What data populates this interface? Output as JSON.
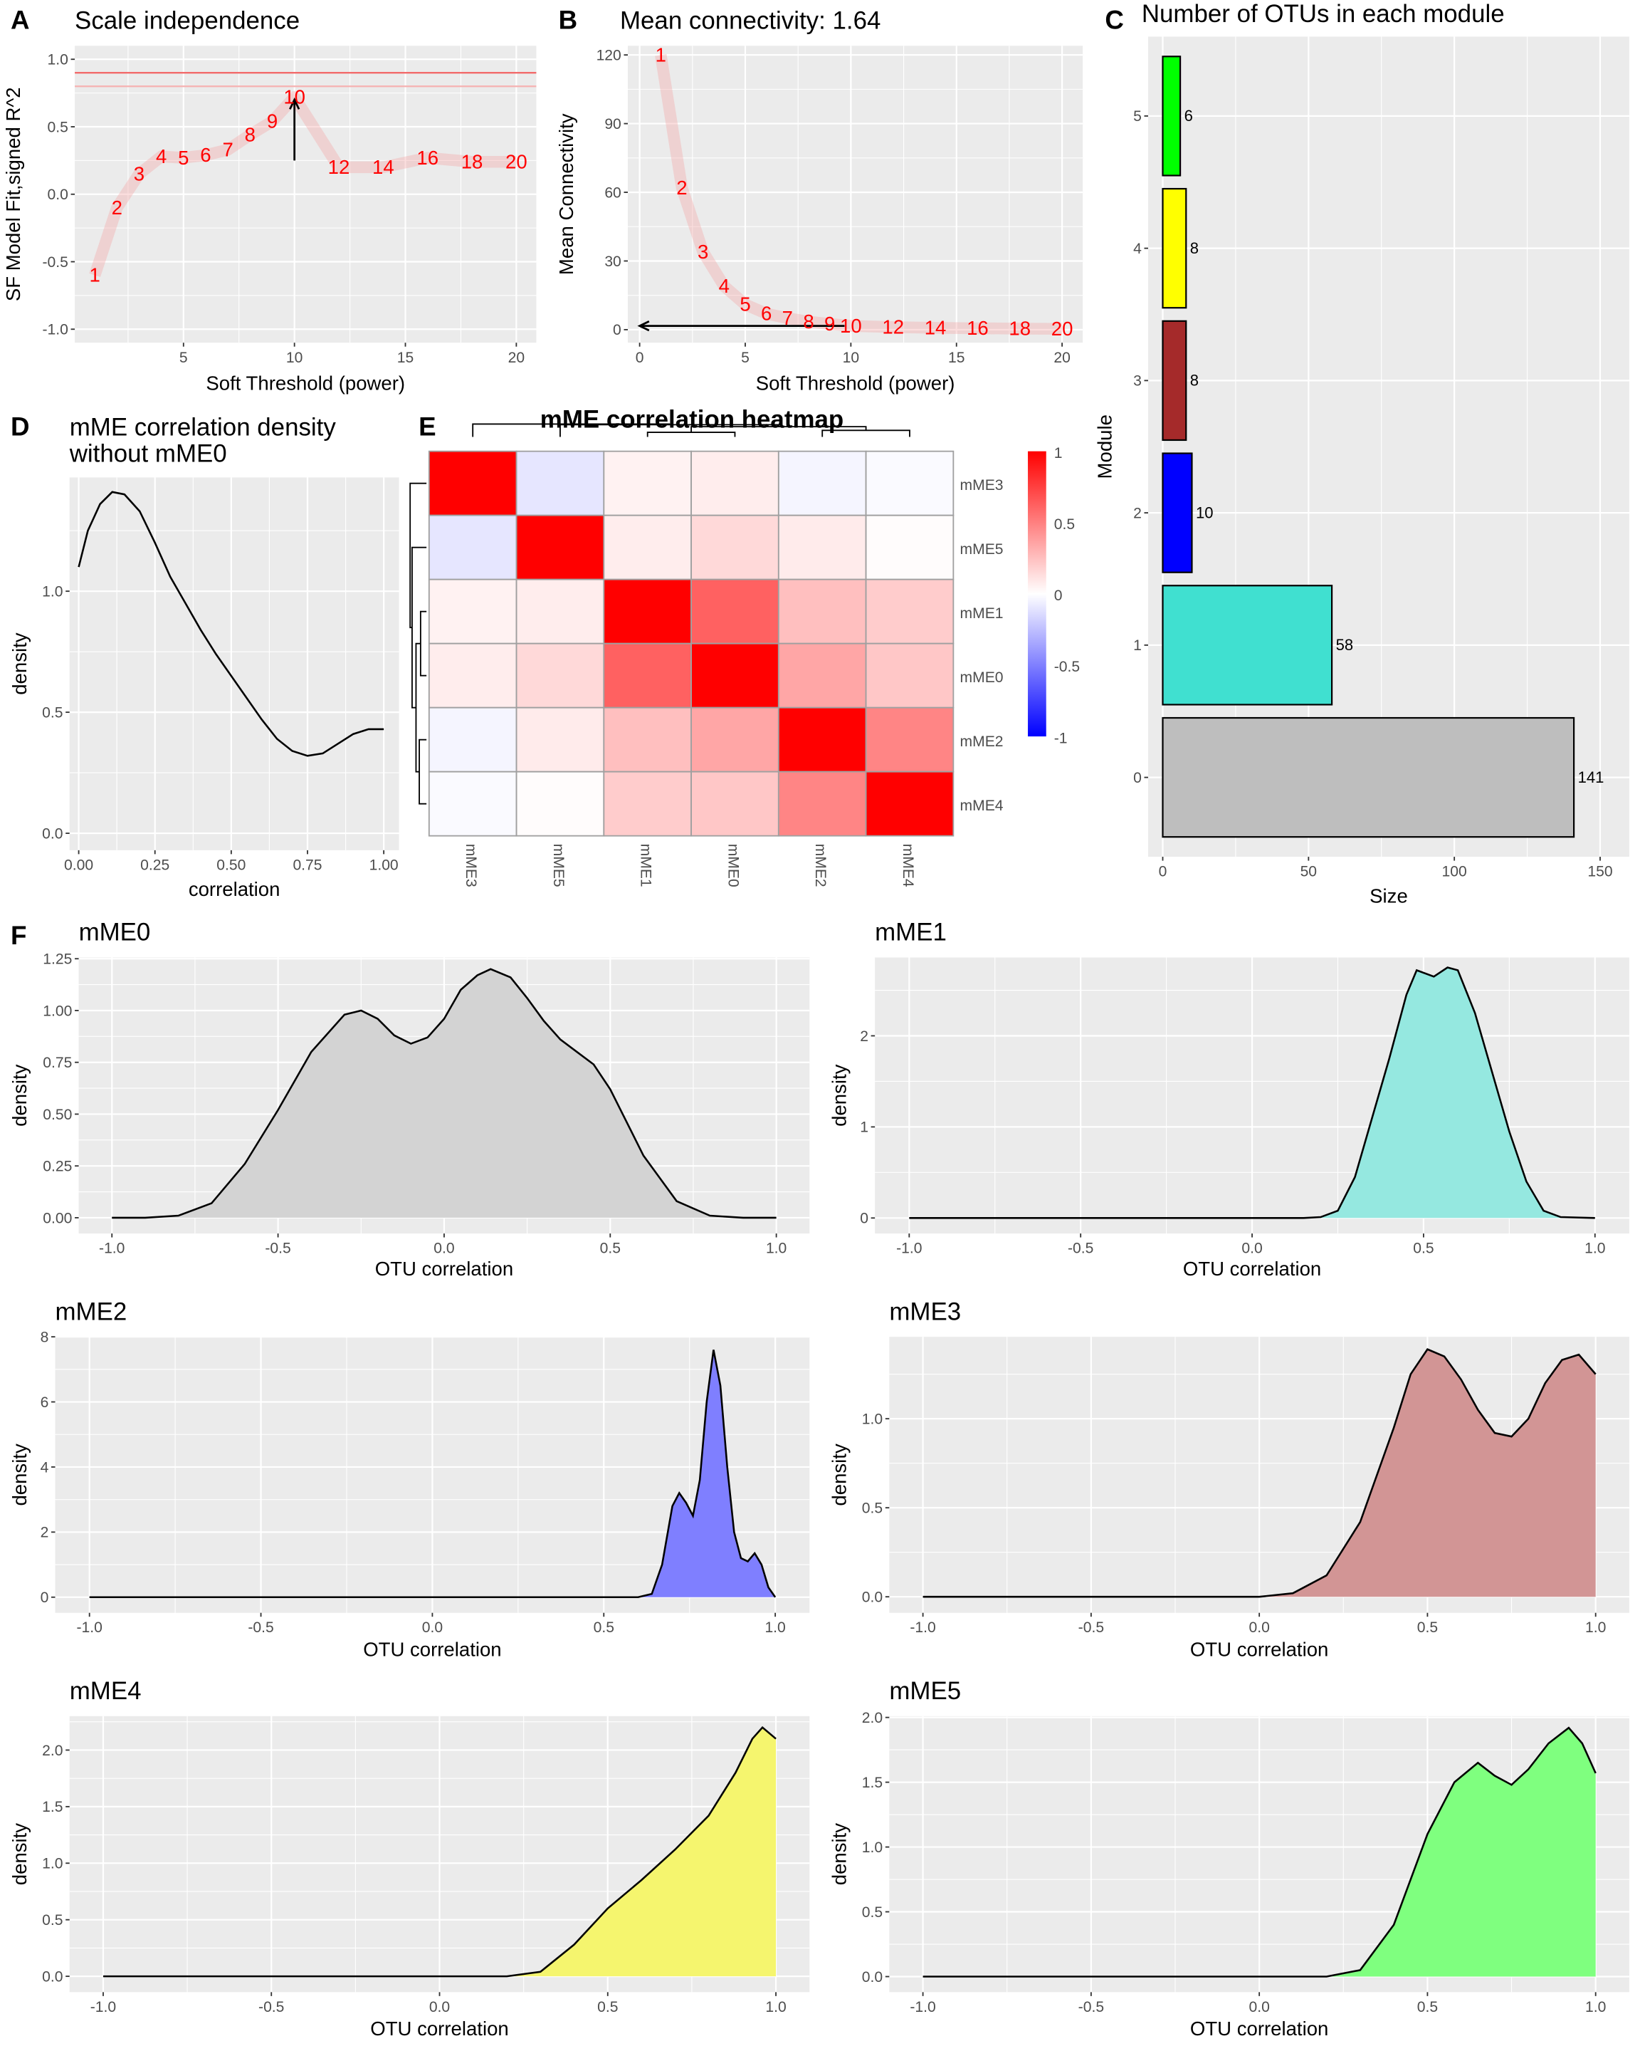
{
  "figure": {
    "colors": {
      "panel_bg": "#EBEBEB",
      "grid": "#FFFFFF",
      "label_red": "#FF0000",
      "heat_high": "#FF0000",
      "heat_mid": "#FFFFFF",
      "heat_low": "#0000FF"
    }
  },
  "chart_data": [
    {
      "panel": "A",
      "type": "line",
      "title": "Scale independence",
      "xlabel": "Soft Threshold (power)",
      "ylabel": "SF Model Fit,signed R^2",
      "xlim": [
        0.1,
        20.9
      ],
      "ylim": [
        -1.1,
        1.1
      ],
      "grid": true,
      "xticks": [
        5,
        10,
        15,
        20
      ],
      "xtick_labels": [
        "5",
        "10",
        "15",
        "20"
      ],
      "yticks": [
        -1,
        -0.5,
        0,
        0.5,
        1
      ],
      "ytick_labels": [
        "-1.0",
        "-0.5",
        "0.0",
        "0.5",
        "1.0"
      ],
      "x": [
        1,
        2,
        3,
        4,
        5,
        6,
        7,
        8,
        9,
        10,
        12,
        14,
        16,
        18,
        20
      ],
      "y": [
        -0.6,
        -0.1,
        0.15,
        0.28,
        0.27,
        0.29,
        0.33,
        0.44,
        0.54,
        0.72,
        0.2,
        0.2,
        0.27,
        0.24,
        0.24
      ],
      "point_labels": [
        "1",
        "2",
        "3",
        "4",
        "5",
        "6",
        "7",
        "8",
        "9",
        "10",
        "12",
        "14",
        "16",
        "18",
        "20"
      ],
      "hlines": [
        {
          "y": 0.9,
          "color": "#F26B6B"
        },
        {
          "y": 0.8,
          "color": "#F5B5B5"
        }
      ],
      "arrow": {
        "from": [
          10,
          0.25
        ],
        "to": [
          10,
          0.7
        ]
      }
    },
    {
      "panel": "B",
      "type": "line",
      "title": "Mean connectivity: 1.64",
      "xlabel": "Soft Threshold (power)",
      "ylabel": "Mean Connectivity",
      "xlim": [
        -0.56,
        20.98
      ],
      "ylim": [
        -5.7,
        124
      ],
      "grid": true,
      "xticks": [
        0,
        5,
        10,
        15,
        20
      ],
      "xtick_labels": [
        "0",
        "5",
        "10",
        "15",
        "20"
      ],
      "yticks": [
        0,
        30,
        60,
        90,
        120
      ],
      "ytick_labels": [
        "0",
        "30",
        "60",
        "90",
        "120"
      ],
      "x": [
        1,
        2,
        3,
        4,
        5,
        6,
        7,
        8,
        9,
        10,
        12,
        14,
        16,
        18,
        20
      ],
      "y": [
        120,
        62,
        34,
        19,
        11,
        7,
        5,
        3.5,
        2.5,
        1.64,
        1.1,
        0.8,
        0.6,
        0.45,
        0.35
      ],
      "point_labels": [
        "1",
        "2",
        "3",
        "4",
        "5",
        "6",
        "7",
        "8",
        "9",
        "10",
        "12",
        "14",
        "16",
        "18",
        "20"
      ],
      "arrow": {
        "from": [
          9.7,
          1.64
        ],
        "to": [
          0,
          1.64
        ]
      }
    },
    {
      "panel": "C",
      "type": "bar",
      "orientation": "horizontal",
      "title": "Number of OTUs in each module",
      "xlabel": "Size",
      "ylabel": "Module",
      "xlim": [
        -5,
        160
      ],
      "ylim": [
        -0.6,
        5.6
      ],
      "grid": true,
      "xticks": [
        0,
        50,
        100,
        150
      ],
      "xtick_labels": [
        "0",
        "50",
        "100",
        "150"
      ],
      "categories": [
        "0",
        "1",
        "2",
        "3",
        "4",
        "5"
      ],
      "values": [
        141,
        58,
        10,
        8,
        8,
        6
      ],
      "value_labels": [
        "141",
        "58",
        "10",
        "8",
        "8",
        "6"
      ],
      "bar_colors": [
        "#BEBEBE",
        "#40E0D0",
        "#0000FF",
        "#A52A2A",
        "#FFFF00",
        "#00FF00"
      ]
    },
    {
      "panel": "D",
      "type": "line",
      "title": "mME correlation density",
      "title_line2": " without mME0",
      "xlabel": "correlation",
      "ylabel": "density",
      "xlim": [
        -0.03,
        1.05
      ],
      "ylim": [
        -0.07,
        1.47
      ],
      "grid": true,
      "xticks": [
        0,
        0.25,
        0.5,
        0.75,
        1
      ],
      "xtick_labels": [
        "0.00",
        "0.25",
        "0.50",
        "0.75",
        "1.00"
      ],
      "yticks": [
        0,
        0.5,
        1
      ],
      "ytick_labels": [
        "0.0",
        "0.5",
        "1.0"
      ],
      "x": [
        0,
        0.03,
        0.07,
        0.11,
        0.15,
        0.2,
        0.25,
        0.3,
        0.35,
        0.4,
        0.45,
        0.5,
        0.55,
        0.6,
        0.65,
        0.7,
        0.75,
        0.8,
        0.85,
        0.9,
        0.95,
        1.0
      ],
      "y": [
        1.1,
        1.25,
        1.36,
        1.41,
        1.4,
        1.33,
        1.2,
        1.06,
        0.95,
        0.84,
        0.74,
        0.65,
        0.56,
        0.47,
        0.39,
        0.34,
        0.32,
        0.33,
        0.37,
        0.41,
        0.43,
        0.43
      ]
    },
    {
      "panel": "E",
      "type": "heatmap",
      "title": "mME correlation heatmap",
      "rows": [
        "mME3",
        "mME5",
        "mME1",
        "mME0",
        "mME2",
        "mME4"
      ],
      "columns": [
        "mME3",
        "mME5",
        "mME1",
        "mME0",
        "mME2",
        "mME4"
      ],
      "values": [
        [
          1.0,
          -0.1,
          0.05,
          0.07,
          -0.04,
          -0.02
        ],
        [
          -0.1,
          1.0,
          0.07,
          0.15,
          0.08,
          0.01
        ],
        [
          0.05,
          0.07,
          1.0,
          0.62,
          0.25,
          0.2
        ],
        [
          0.07,
          0.15,
          0.62,
          1.0,
          0.35,
          0.22
        ],
        [
          -0.04,
          0.08,
          0.25,
          0.35,
          1.0,
          0.48
        ],
        [
          -0.02,
          0.01,
          0.2,
          0.22,
          0.48,
          1.0
        ]
      ],
      "colorbar": {
        "range": [
          -1,
          1
        ],
        "ticks": [
          1,
          0.5,
          0,
          -0.5,
          -1
        ],
        "tick_labels": [
          "1",
          "0.5",
          "0",
          "-0.5",
          "-1"
        ]
      }
    },
    {
      "panel": "F",
      "type": "area",
      "title": "mME0",
      "xlabel": "OTU correlation",
      "ylabel": "density",
      "fill": "#D3D3D3",
      "xlim": [
        -1.1,
        1.1
      ],
      "ylim": [
        -0.076,
        1.256
      ],
      "xticks": [
        -1,
        -0.5,
        0,
        0.5,
        1
      ],
      "xtick_labels": [
        "-1.0",
        "-0.5",
        "0.0",
        "0.5",
        "1.0"
      ],
      "yticks": [
        0,
        0.25,
        0.5,
        0.75,
        1,
        1.25
      ],
      "ytick_labels": [
        "0.00",
        "0.25",
        "0.50",
        "0.75",
        "1.00",
        "1.25"
      ],
      "x": [
        -1,
        -0.9,
        -0.8,
        -0.7,
        -0.6,
        -0.5,
        -0.4,
        -0.3,
        -0.25,
        -0.2,
        -0.15,
        -0.1,
        -0.05,
        0,
        0.05,
        0.1,
        0.14,
        0.2,
        0.25,
        0.3,
        0.35,
        0.4,
        0.45,
        0.5,
        0.55,
        0.6,
        0.7,
        0.8,
        0.9,
        1
      ],
      "y": [
        0,
        0,
        0.01,
        0.07,
        0.26,
        0.52,
        0.8,
        0.98,
        1.0,
        0.96,
        0.88,
        0.84,
        0.87,
        0.96,
        1.1,
        1.17,
        1.2,
        1.16,
        1.06,
        0.95,
        0.86,
        0.8,
        0.74,
        0.62,
        0.46,
        0.3,
        0.08,
        0.01,
        0,
        0
      ]
    },
    {
      "type": "area",
      "title": "mME1",
      "xlabel": "OTU correlation",
      "ylabel": "density",
      "fill": "#95E8E0",
      "xlim": [
        -1.1,
        1.1
      ],
      "ylim": [
        -0.17,
        2.86
      ],
      "xticks": [
        -1,
        -0.5,
        0,
        0.5,
        1
      ],
      "xtick_labels": [
        "-1.0",
        "-0.5",
        "0.0",
        "0.5",
        "1.0"
      ],
      "yticks": [
        0,
        1,
        2
      ],
      "ytick_labels": [
        "0",
        "1",
        "2"
      ],
      "x": [
        -1,
        0.15,
        0.2,
        0.25,
        0.3,
        0.35,
        0.4,
        0.45,
        0.48,
        0.53,
        0.57,
        0.6,
        0.65,
        0.7,
        0.75,
        0.8,
        0.85,
        0.9,
        1
      ],
      "y": [
        0,
        0,
        0.01,
        0.08,
        0.45,
        1.1,
        1.75,
        2.45,
        2.72,
        2.65,
        2.75,
        2.72,
        2.25,
        1.6,
        0.95,
        0.4,
        0.08,
        0.01,
        0
      ]
    },
    {
      "type": "area",
      "title": "mME2",
      "xlabel": "OTU correlation",
      "ylabel": "density",
      "fill": "#7F7FFF",
      "xlim": [
        -1.1,
        1.1
      ],
      "ylim": [
        -0.48,
        8
      ],
      "xticks": [
        -1,
        -0.5,
        0,
        0.5,
        1
      ],
      "xtick_labels": [
        "-1.0",
        "-0.5",
        "0.0",
        "0.5",
        "1.0"
      ],
      "yticks": [
        0,
        2,
        4,
        6,
        8
      ],
      "ytick_labels": [
        "0",
        "2",
        "4",
        "6",
        "8"
      ],
      "x": [
        -1,
        0.6,
        0.64,
        0.67,
        0.7,
        0.72,
        0.74,
        0.76,
        0.78,
        0.8,
        0.82,
        0.84,
        0.86,
        0.88,
        0.9,
        0.92,
        0.94,
        0.96,
        0.98,
        1
      ],
      "y": [
        0,
        0,
        0.1,
        1.0,
        2.8,
        3.2,
        2.9,
        2.5,
        3.6,
        6.0,
        7.6,
        6.5,
        4.0,
        2.0,
        1.2,
        1.1,
        1.35,
        1.0,
        0.3,
        0
      ]
    },
    {
      "type": "area",
      "title": "mME3",
      "xlabel": "OTU correlation",
      "ylabel": "density",
      "fill": "#D29595",
      "xlim": [
        -1.1,
        1.1
      ],
      "ylim": [
        -0.09,
        1.46
      ],
      "xticks": [
        -1,
        -0.5,
        0,
        0.5,
        1
      ],
      "xtick_labels": [
        "-1.0",
        "-0.5",
        "0.0",
        "0.5",
        "1.0"
      ],
      "yticks": [
        0,
        0.5,
        1
      ],
      "ytick_labels": [
        "0.0",
        "0.5",
        "1.0"
      ],
      "x": [
        -1,
        0,
        0.1,
        0.2,
        0.3,
        0.4,
        0.45,
        0.5,
        0.55,
        0.6,
        0.65,
        0.7,
        0.75,
        0.8,
        0.85,
        0.9,
        0.95,
        1
      ],
      "y": [
        0,
        0,
        0.02,
        0.12,
        0.42,
        0.95,
        1.25,
        1.39,
        1.35,
        1.22,
        1.05,
        0.92,
        0.9,
        1.0,
        1.2,
        1.33,
        1.36,
        1.25
      ]
    },
    {
      "type": "area",
      "title": "mME4",
      "xlabel": "OTU correlation",
      "ylabel": "density",
      "fill": "#F5F56E",
      "xlim": [
        -1.1,
        1.1
      ],
      "ylim": [
        -0.14,
        2.3
      ],
      "xticks": [
        -1,
        -0.5,
        0,
        0.5,
        1
      ],
      "xtick_labels": [
        "-1.0",
        "-0.5",
        "0.0",
        "0.5",
        "1.0"
      ],
      "yticks": [
        0,
        0.5,
        1,
        1.5,
        2
      ],
      "ytick_labels": [
        "0.0",
        "0.5",
        "1.0",
        "1.5",
        "2.0"
      ],
      "x": [
        -1,
        0.2,
        0.3,
        0.4,
        0.5,
        0.6,
        0.7,
        0.8,
        0.88,
        0.93,
        0.96,
        1
      ],
      "y": [
        0,
        0,
        0.04,
        0.28,
        0.6,
        0.85,
        1.12,
        1.42,
        1.8,
        2.1,
        2.2,
        2.1
      ]
    },
    {
      "type": "area",
      "title": "mME5",
      "xlabel": "OTU correlation",
      "ylabel": "density",
      "fill": "#7FFF7F",
      "xlim": [
        -1.1,
        1.1
      ],
      "ylim": [
        -0.12,
        2.01
      ],
      "xticks": [
        -1,
        -0.5,
        0,
        0.5,
        1
      ],
      "xtick_labels": [
        "-1.0",
        "-0.5",
        "0.0",
        "0.5",
        "1.0"
      ],
      "yticks": [
        0,
        0.5,
        1,
        1.5,
        2
      ],
      "ytick_labels": [
        "0.0",
        "0.5",
        "1.0",
        "1.5",
        "2.0"
      ],
      "x": [
        -1,
        0.2,
        0.3,
        0.4,
        0.5,
        0.58,
        0.65,
        0.7,
        0.75,
        0.8,
        0.86,
        0.92,
        0.96,
        1
      ],
      "y": [
        0,
        0,
        0.05,
        0.4,
        1.1,
        1.5,
        1.65,
        1.55,
        1.48,
        1.6,
        1.8,
        1.92,
        1.8,
        1.57
      ]
    }
  ]
}
